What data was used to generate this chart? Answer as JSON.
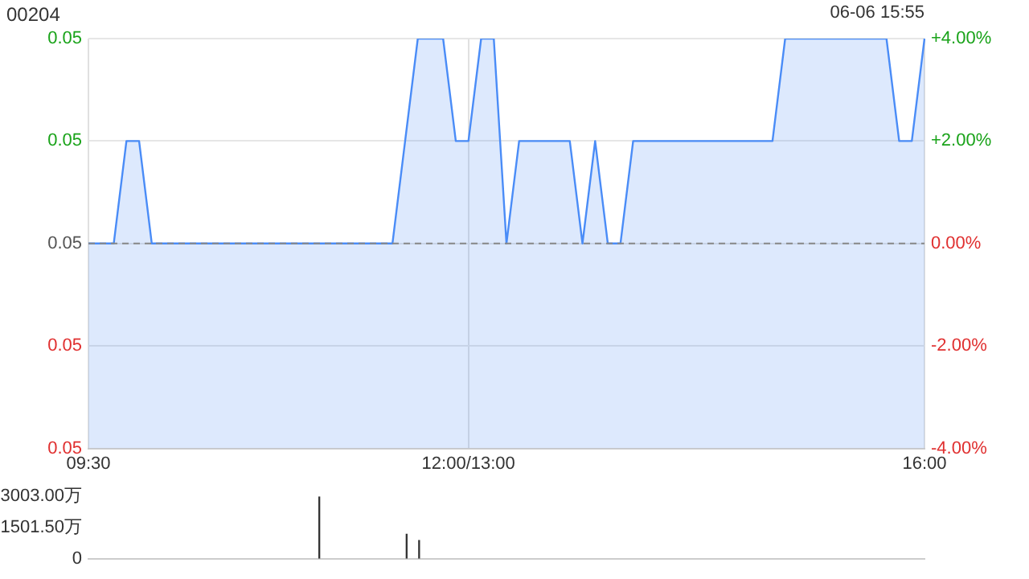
{
  "chart_data": [
    {
      "type": "area",
      "title": "00204",
      "annotations": [
        "06-06 15:55"
      ],
      "categories": [
        "09:30",
        null,
        null,
        null,
        null,
        null,
        null,
        null,
        null,
        null,
        null,
        null,
        null,
        null,
        null,
        null,
        null,
        null,
        null,
        null,
        null,
        null,
        null,
        null,
        null,
        null,
        null,
        null,
        null,
        null,
        "12:00/13:00",
        null,
        null,
        null,
        null,
        null,
        null,
        null,
        null,
        null,
        null,
        null,
        null,
        null,
        null,
        null,
        null,
        null,
        null,
        null,
        null,
        null,
        null,
        null,
        null,
        null,
        null,
        null,
        null,
        null,
        null,
        null,
        null,
        null,
        null,
        null,
        "16:00"
      ],
      "values": [
        0.05,
        0.05,
        0.05,
        0.051,
        0.051,
        0.05,
        0.05,
        0.05,
        0.05,
        0.05,
        0.05,
        0.05,
        0.05,
        0.05,
        0.05,
        0.05,
        0.05,
        0.05,
        0.05,
        0.05,
        0.05,
        0.05,
        0.05,
        0.05,
        0.05,
        0.051,
        0.052,
        0.052,
        0.052,
        0.051,
        0.051,
        0.052,
        0.052,
        0.05,
        0.051,
        0.051,
        0.051,
        0.051,
        0.051,
        0.05,
        0.051,
        0.05,
        0.05,
        0.051,
        0.051,
        0.051,
        0.051,
        0.051,
        0.051,
        0.051,
        0.051,
        0.051,
        0.051,
        0.051,
        0.051,
        0.052,
        0.052,
        0.052,
        0.052,
        0.052,
        0.052,
        0.052,
        0.052,
        0.052,
        0.051,
        0.051,
        0.052
      ],
      "color": "#4a8cf7",
      "ylim": [
        0.048,
        0.052
      ],
      "yticks": [
        {
          "value": 0.048,
          "label": "0.05"
        },
        {
          "value": 0.049,
          "label": "0.05"
        },
        {
          "value": 0.05,
          "label": "0.05"
        },
        {
          "value": 0.051,
          "label": "0.05"
        },
        {
          "value": 0.052,
          "label": "0.05"
        }
      ],
      "y2lim": [
        -4,
        4
      ],
      "y2ticks": [
        {
          "value": -4,
          "label": "-4.00%"
        },
        {
          "value": -2,
          "label": "-2.00%"
        },
        {
          "value": 0,
          "label": "0.00%"
        },
        {
          "value": 2,
          "label": "+2.00%"
        },
        {
          "value": 4,
          "label": "+4.00%"
        }
      ],
      "ref_lines": [
        {
          "axis": "y",
          "value": 0.05,
          "color": "#888888",
          "line_style": "dashed"
        }
      ],
      "grid": true
    },
    {
      "type": "bar",
      "categories": [
        null,
        null,
        null,
        null,
        null,
        null,
        null,
        null,
        null,
        null,
        null,
        null,
        null,
        null,
        null,
        null,
        null,
        null,
        null,
        null,
        null,
        null,
        null,
        null,
        null,
        null,
        null,
        null,
        null,
        null,
        null,
        null,
        null,
        null,
        null,
        null,
        null,
        null,
        null,
        null,
        null,
        null,
        null,
        null,
        null,
        null,
        null,
        null,
        null,
        null,
        null,
        null,
        null,
        null,
        null,
        null,
        null,
        null,
        null,
        null,
        null,
        null,
        null,
        null,
        null,
        null,
        null
      ],
      "values": [
        0,
        0,
        0,
        0,
        0,
        0,
        0,
        0,
        0,
        0,
        0,
        0,
        0,
        0,
        0,
        0,
        0,
        0,
        3000,
        0,
        0,
        0,
        0,
        0,
        0,
        1200,
        900,
        0,
        0,
        0,
        0,
        0,
        0,
        0,
        0,
        0,
        0,
        0,
        0,
        0,
        0,
        0,
        0,
        0,
        0,
        0,
        0,
        0,
        0,
        0,
        0,
        0,
        0,
        0,
        0,
        0,
        0,
        0,
        0,
        0,
        0,
        0,
        0,
        0,
        0,
        0,
        0
      ],
      "color": "#333333",
      "ylim": [
        0,
        3003
      ],
      "yticks": [
        0,
        {
          "value": 1501.5,
          "label": "1501.50万"
        },
        {
          "value": 3003,
          "label": "3003.00万"
        }
      ],
      "tick_labels": "y"
    }
  ]
}
